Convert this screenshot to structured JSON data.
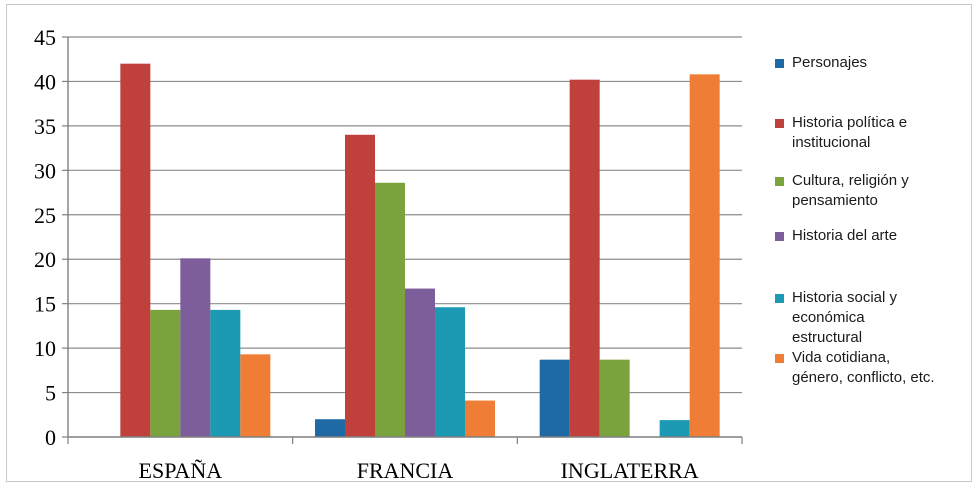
{
  "chart_data": {
    "type": "bar",
    "categories": [
      "ESPAÑA",
      "FRANCIA",
      "INGLATERRA"
    ],
    "series": [
      {
        "name": "Personajes",
        "color": "#1f6aa5",
        "values": [
          0,
          2,
          8.7
        ]
      },
      {
        "name": "Historia política e institucional",
        "color": "#c0403c",
        "values": [
          42,
          34,
          40.2
        ]
      },
      {
        "name": "Cultura, religión y pensamiento",
        "color": "#7aa33e",
        "values": [
          14.3,
          28.6,
          8.7
        ]
      },
      {
        "name": "Historia del arte",
        "color": "#7e5e9a",
        "values": [
          20.1,
          16.7,
          0
        ]
      },
      {
        "name": "Historia social y económica estructural",
        "color": "#1c9ab4",
        "values": [
          14.3,
          14.6,
          1.9
        ]
      },
      {
        "name": "Vida cotidiana, género, conflicto, etc.",
        "color": "#ef7d35",
        "values": [
          9.3,
          4.1,
          40.8
        ]
      }
    ],
    "legend_lines": [
      [
        "Personajes"
      ],
      [
        "Historia política e",
        "institucional"
      ],
      [
        "Cultura, religión y",
        "pensamiento"
      ],
      [
        "Historia del arte"
      ],
      [
        "Historia social y",
        "económica",
        "estructural"
      ],
      [
        "Vida cotidiana,",
        "género, conflicto, etc."
      ]
    ],
    "y_ticks": [
      "0",
      "5",
      "10",
      "15",
      "20",
      "25",
      "30",
      "35",
      "40",
      "45"
    ],
    "ylim": [
      0,
      45
    ],
    "grid": "horizontal",
    "legend_position": "right",
    "title": "",
    "xlabel": "",
    "ylabel": ""
  }
}
